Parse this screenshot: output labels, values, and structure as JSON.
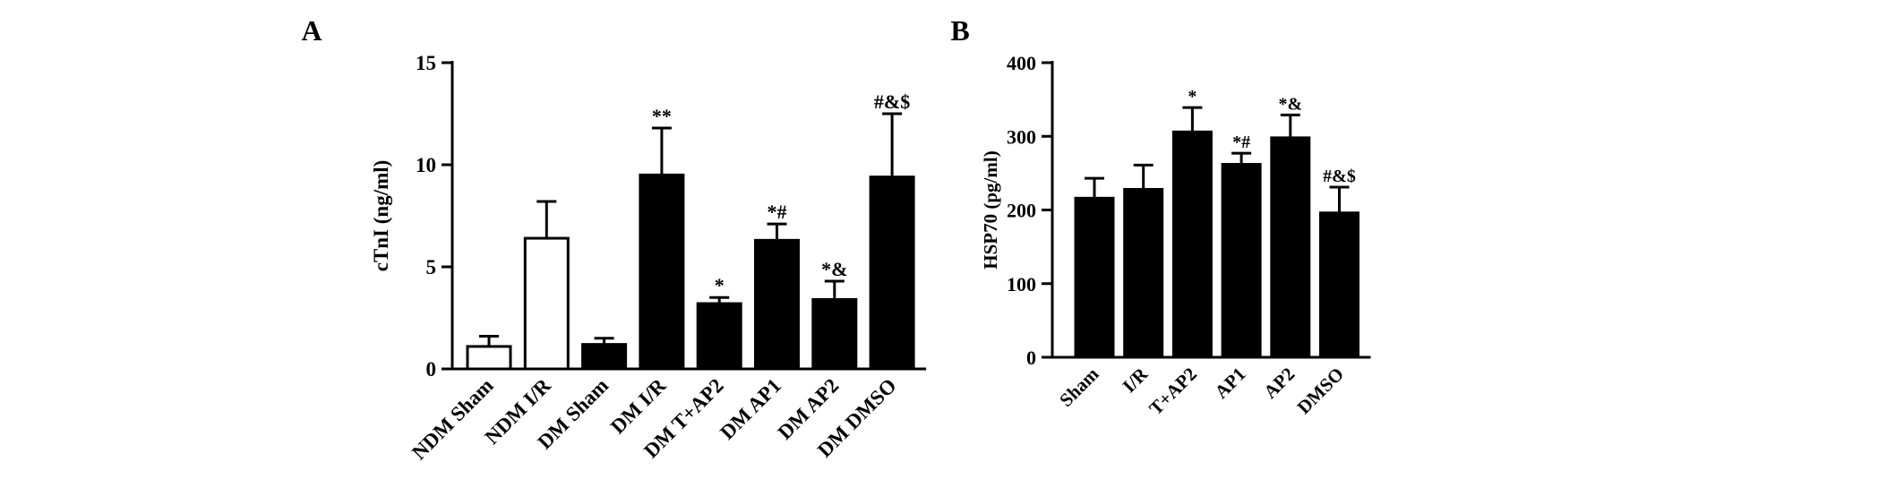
{
  "chart_data": [
    {
      "type": "bar",
      "panel_label": "A",
      "ylabel": "cTnI (ng/ml)",
      "ylim": [
        0,
        15
      ],
      "yticks": [
        "0",
        "5",
        "10",
        "15"
      ],
      "categories": [
        "NDM Sham",
        "NDM I/R",
        "DM Sham",
        "DM I/R",
        "DM T+AP2",
        "DM AP1",
        "DM AP2",
        "DM DMSO"
      ],
      "values": [
        1.1,
        6.4,
        1.2,
        9.5,
        3.2,
        6.3,
        3.4,
        9.4
      ],
      "errors": [
        0.5,
        1.8,
        0.3,
        2.3,
        0.3,
        0.8,
        0.9,
        3.1
      ],
      "fills": [
        "white",
        "white",
        "black",
        "black",
        "black",
        "black",
        "black",
        "black"
      ],
      "annotations": [
        "",
        "",
        "",
        "**",
        "*",
        "*#",
        "*&",
        "#&$"
      ]
    },
    {
      "type": "bar",
      "panel_label": "B",
      "ylabel": "HSP70 (pg/ml)",
      "ylim": [
        0,
        400
      ],
      "yticks": [
        "0",
        "100",
        "200",
        "300",
        "400"
      ],
      "categories": [
        "Sham",
        "I/R",
        "T+AP2",
        "AP1",
        "AP2",
        "DMSO"
      ],
      "values": [
        216,
        228,
        306,
        262,
        298,
        196
      ],
      "errors": [
        27,
        33,
        33,
        15,
        31,
        35
      ],
      "fills": [
        "black",
        "black",
        "black",
        "black",
        "black",
        "black"
      ],
      "annotations": [
        "",
        "",
        "*",
        "*#",
        "*&",
        "#&$"
      ]
    }
  ]
}
